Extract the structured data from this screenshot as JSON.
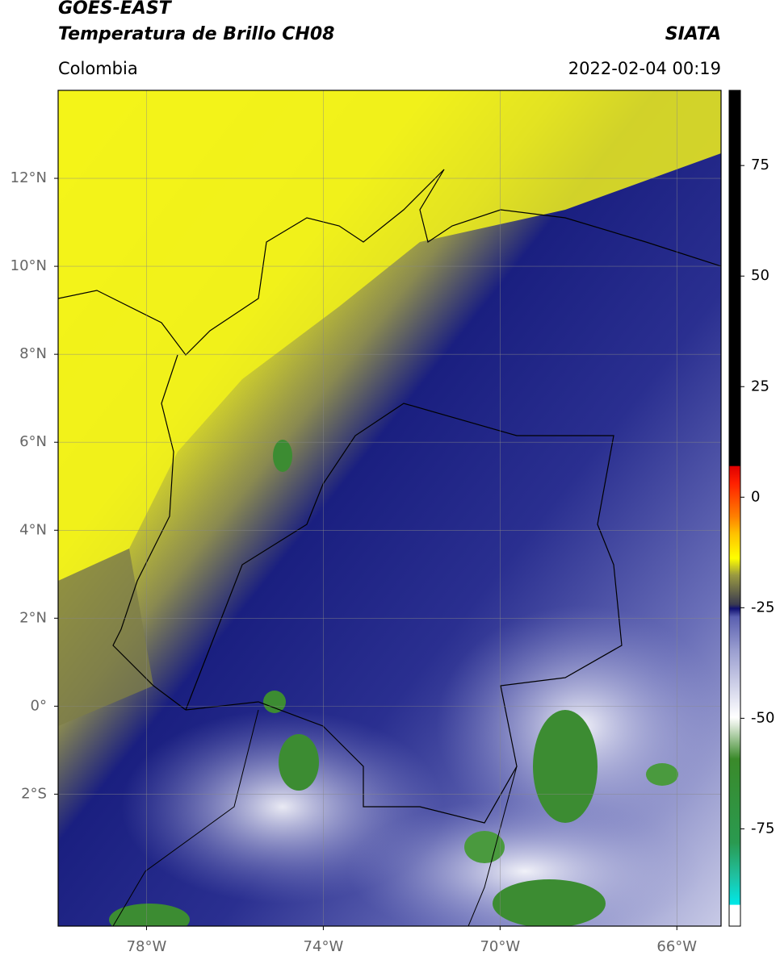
{
  "header": {
    "satellite": "GOES-EAST",
    "product": "Temperatura de Brillo CH08",
    "source": "SIATA",
    "region": "Colombia",
    "datetime": "2022-02-04 00:19"
  },
  "map": {
    "lon_range": [
      -80,
      -65
    ],
    "lat_range": [
      -5,
      14
    ],
    "lat_ticks": [
      {
        "value": 12,
        "label": "12°N"
      },
      {
        "value": 10,
        "label": "10°N"
      },
      {
        "value": 8,
        "label": "8°N"
      },
      {
        "value": 6,
        "label": "6°N"
      },
      {
        "value": 4,
        "label": "4°N"
      },
      {
        "value": 2,
        "label": "2°N"
      },
      {
        "value": 0,
        "label": "0°"
      },
      {
        "value": -2,
        "label": "2°S"
      }
    ],
    "lon_ticks": [
      {
        "value": -78,
        "label": "78°W"
      },
      {
        "value": -74,
        "label": "74°W"
      },
      {
        "value": -70,
        "label": "70°W"
      },
      {
        "value": -66,
        "label": "66°W"
      }
    ],
    "grid": true
  },
  "colorbar": {
    "range": [
      -97,
      92
    ],
    "ticks": [
      75,
      50,
      25,
      0,
      -25,
      -50,
      -75
    ]
  }
}
